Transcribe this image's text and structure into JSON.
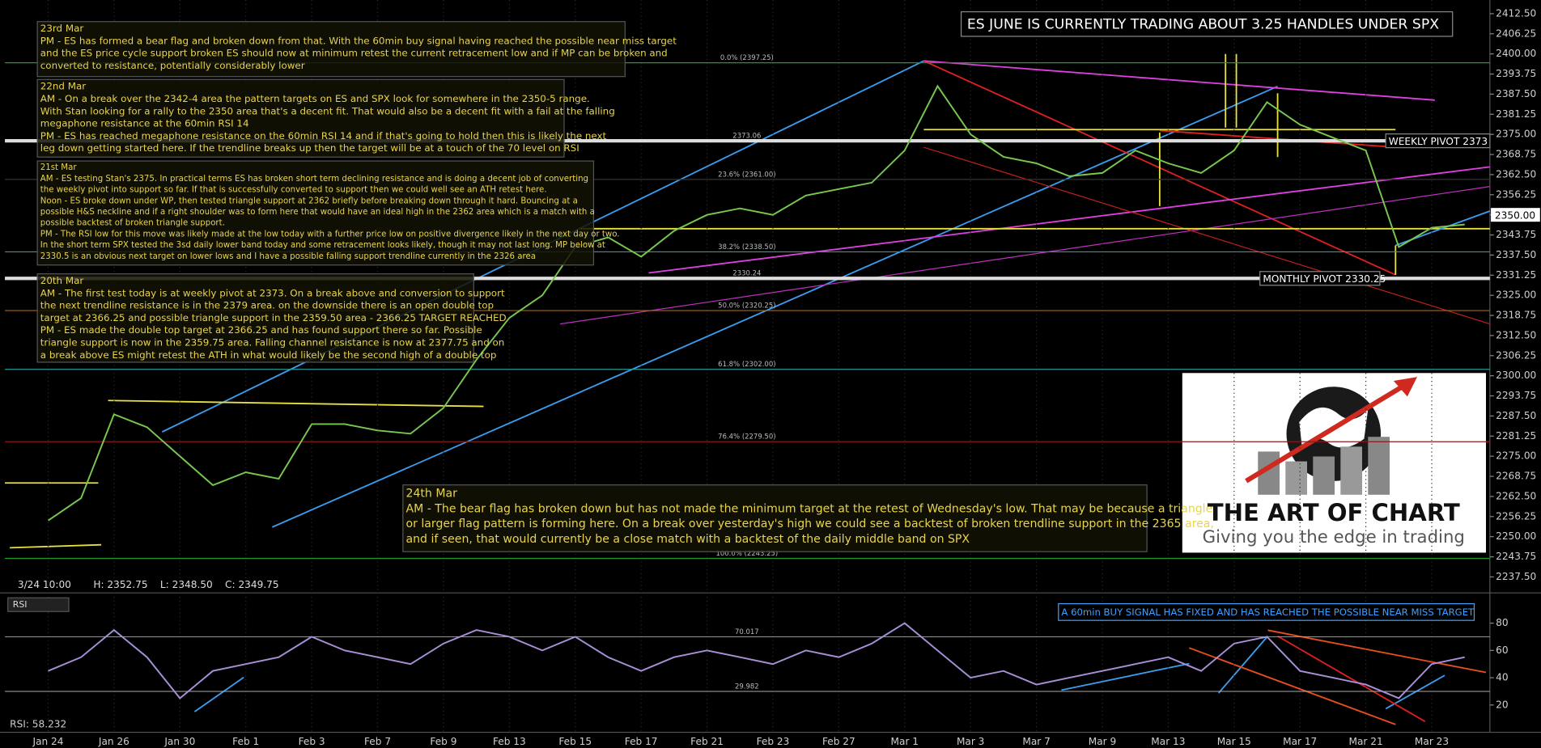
{
  "headline": "ES JUNE IS CURRENTLY TRADING ABOUT 3.25 HANDLES UNDER SPX",
  "header": {
    "time": "3/24 10:00",
    "high": "H: 2352.75",
    "low": "L: 2348.50",
    "close": "C: 2349.75"
  },
  "annotations": [
    {
      "title": "23rd Mar",
      "lines": [
        "PM - ES has formed a bear flag and broken down from that. With the 60min buy signal having reached the possible near miss target",
        "and the ES price cycle support broken ES should now at minimum retest the current retracement low and if MP can be broken and",
        "converted to resistance, potentially considerably lower"
      ]
    },
    {
      "title": "22nd Mar",
      "lines": [
        "AM - On a break over the 2342-4 area the pattern targets on ES and SPX look for somewhere in the 2350-5 range.",
        "With Stan looking for a rally to the 2350 area that's a decent fit. That would also be a decent fit with a fail at the falling",
        "megaphone resistance at the 60min RSI 14",
        "PM - ES has reached megaphone resistance on the 60min RSI 14 and if that's going to hold then this is likely the next",
        "leg down getting started here. If the trendline breaks up then the target will be at a touch of the 70 level on RSI"
      ]
    },
    {
      "title": "21st Mar",
      "lines": [
        "AM - ES testing Stan's 2375. In practical terms ES has broken short term declining resistance and is doing a decent job of converting",
        "the weekly pivot into support so far. If that is successfully converted to support then we could well see an ATH retest here.",
        "Noon - ES broke down under WP, then tested triangle support at 2362 briefly before breaking down through it hard. Bouncing at a",
        "possible H&S neckline and if a right shoulder was to form here that would have an ideal high in the 2362 area which is a match with a",
        "possible backtest of broken triangle support.",
        "PM - The RSI low for this move was likely made at the low today with a further price low on positive divergence likely in the next day or two.",
        "In the short term SPX tested the 3sd daily lower band today and some retracement looks likely, though it may not last long. MP below at",
        "2330.5 is an obvious next target on lower lows and I have a possible falling support trendline currently in the 2326 area"
      ]
    },
    {
      "title": "20th Mar",
      "lines": [
        "AM - The first test today is at weekly pivot at 2373. On a break above and conversion to support",
        "the next trendline resistance is in the 2379 area. on the downside there is an open double top",
        "target at 2366.25 and possible triangle support in the 2359.50 area - 2366.25 TARGET REACHED",
        "PM - ES made the double top target at 2366.25 and has found support there so far. Possible",
        "triangle support is now in the 2359.75 area. Falling channel resistance is now at 2377.75 and on",
        "a break above ES might retest the ATH in what would likely be the second high of a double top"
      ]
    },
    {
      "title": "24th Mar",
      "lines": [
        "AM - The bear flag has broken down but has not made the minimum target at the retest of Wednesday's low. That may be because a triangle",
        "or larger flag pattern is forming here. On a break over yesterday's high we could see a backtest of broken trendline support in the 2365 area,",
        "and if seen, that would currently be a close match with a backtest of the daily middle band on SPX"
      ]
    }
  ],
  "logo": {
    "title": "THE ART OF CHART",
    "tagline": "Giving you the edge in trading"
  },
  "chart_data": {
    "type": "line",
    "categories": [
      "Jan 24",
      null,
      "Jan 26",
      null,
      "Jan 30",
      null,
      "Feb 1",
      null,
      "Feb 3",
      null,
      "Feb 7",
      null,
      "Feb 9",
      null,
      "Feb 13",
      null,
      "Feb 15",
      null,
      "Feb 17",
      null,
      "Feb 21",
      null,
      "Feb 23",
      null,
      "Feb 27",
      null,
      "Mar 1",
      null,
      "Mar 3",
      null,
      "Mar 7",
      null,
      "Mar 9",
      null,
      "Mar 13",
      null,
      "Mar 15",
      null,
      "Mar 17",
      null,
      "Mar 21",
      null,
      "Mar 23",
      null
    ],
    "values": [
      2255,
      2262,
      2288,
      2284,
      2275,
      2266,
      2270,
      2268,
      2285,
      2285,
      2283,
      2282,
      2290,
      2305,
      2318,
      2325,
      2340,
      2343,
      2337,
      2345,
      2350,
      2352,
      2350,
      2356,
      2358,
      2360,
      2370,
      2390,
      2375,
      2368,
      2366,
      2362,
      2363,
      2370,
      2366,
      2363,
      2370,
      2385,
      2378,
      2374,
      2370,
      2340,
      2346,
      2347
    ],
    "color": "#78c850",
    "ylim": [
      2233.75,
      2416.75
    ],
    "yticks": [
      {
        "value": 2237.5,
        "label": "2237.50"
      },
      {
        "value": 2243.75,
        "label": "2243.75"
      },
      {
        "value": 2250,
        "label": "2250.00"
      },
      {
        "value": 2256.25,
        "label": "2256.25"
      },
      {
        "value": 2262.5,
        "label": "2262.50"
      },
      {
        "value": 2268.75,
        "label": "2268.75"
      },
      {
        "value": 2275,
        "label": "2275.00"
      },
      {
        "value": 2281.25,
        "label": "2281.25"
      },
      {
        "value": 2287.5,
        "label": "2287.50"
      },
      {
        "value": 2293.75,
        "label": "2293.75"
      },
      {
        "value": 2300,
        "label": "2300.00"
      },
      {
        "value": 2306.25,
        "label": "2306.25"
      },
      {
        "value": 2312.5,
        "label": "2312.50"
      },
      {
        "value": 2318.75,
        "label": "2318.75"
      },
      {
        "value": 2325,
        "label": "2325.00"
      },
      {
        "value": 2331.25,
        "label": "2331.25"
      },
      {
        "value": 2337.5,
        "label": "2337.50"
      },
      {
        "value": 2343.75,
        "label": "2343.75"
      },
      {
        "value": 2350,
        "label": "2350.00"
      },
      {
        "value": 2356.25,
        "label": "2356.25"
      },
      {
        "value": 2362.5,
        "label": "2362.50"
      },
      {
        "value": 2368.75,
        "label": "2368.75"
      },
      {
        "value": 2375,
        "label": "2375.00"
      },
      {
        "value": 2381.25,
        "label": "2381.25"
      },
      {
        "value": 2387.5,
        "label": "2387.50"
      },
      {
        "value": 2393.75,
        "label": "2393.75"
      },
      {
        "value": 2400,
        "label": "2400.00"
      },
      {
        "value": 2406.25,
        "label": "2406.25"
      },
      {
        "value": 2412.5,
        "label": "2412.50"
      }
    ],
    "last_price": {
      "value": 2350,
      "label": "2350.00"
    },
    "fib_levels": [
      {
        "value": 2397.25,
        "label": "0.0% (2397.25)"
      },
      {
        "value": 2361,
        "label": "23.6% (2361.00)"
      },
      {
        "value": 2338.5,
        "label": "38.2% (2338.50)"
      },
      {
        "value": 2320.25,
        "label": "50.0% (2320.25)"
      },
      {
        "value": 2302,
        "label": "61.8% (2302.00)"
      },
      {
        "value": 2279.5,
        "label": "76.4% (2279.50)"
      },
      {
        "value": 2243.25,
        "label": "100.0% (2243.25)"
      }
    ],
    "levels": [
      {
        "value": 2373.06,
        "label": "2373.06"
      },
      {
        "value": 2330.24,
        "label": "2330.24"
      }
    ],
    "pivots": [
      {
        "value": 2373,
        "label": "WEEKLY PIVOT 2373"
      },
      {
        "value": 2330.25,
        "label": "MONTHLY PIVOT 2330.25"
      }
    ],
    "rsi": {
      "label": "RSI",
      "reading": "RSI: 58.232",
      "color": "#a890d8",
      "values": [
        45,
        55,
        75,
        55,
        25,
        45,
        50,
        55,
        70,
        60,
        55,
        50,
        65,
        75,
        70,
        60,
        70,
        55,
        45,
        55,
        60,
        55,
        50,
        60,
        55,
        65,
        80,
        60,
        40,
        45,
        35,
        40,
        45,
        50,
        55,
        45,
        65,
        70,
        45,
        40,
        35,
        25,
        50,
        55
      ],
      "ylim": [
        0,
        100
      ],
      "yticks": [
        80,
        60,
        40,
        20
      ],
      "levels": [
        {
          "value": 70.017,
          "label": "70.017"
        },
        {
          "value": 29.982,
          "label": "29.982"
        }
      ],
      "note": "A 60min BUY SIGNAL HAS FIXED AND HAS REACHED THE POSSIBLE NEAR MISS TARGET"
    }
  }
}
